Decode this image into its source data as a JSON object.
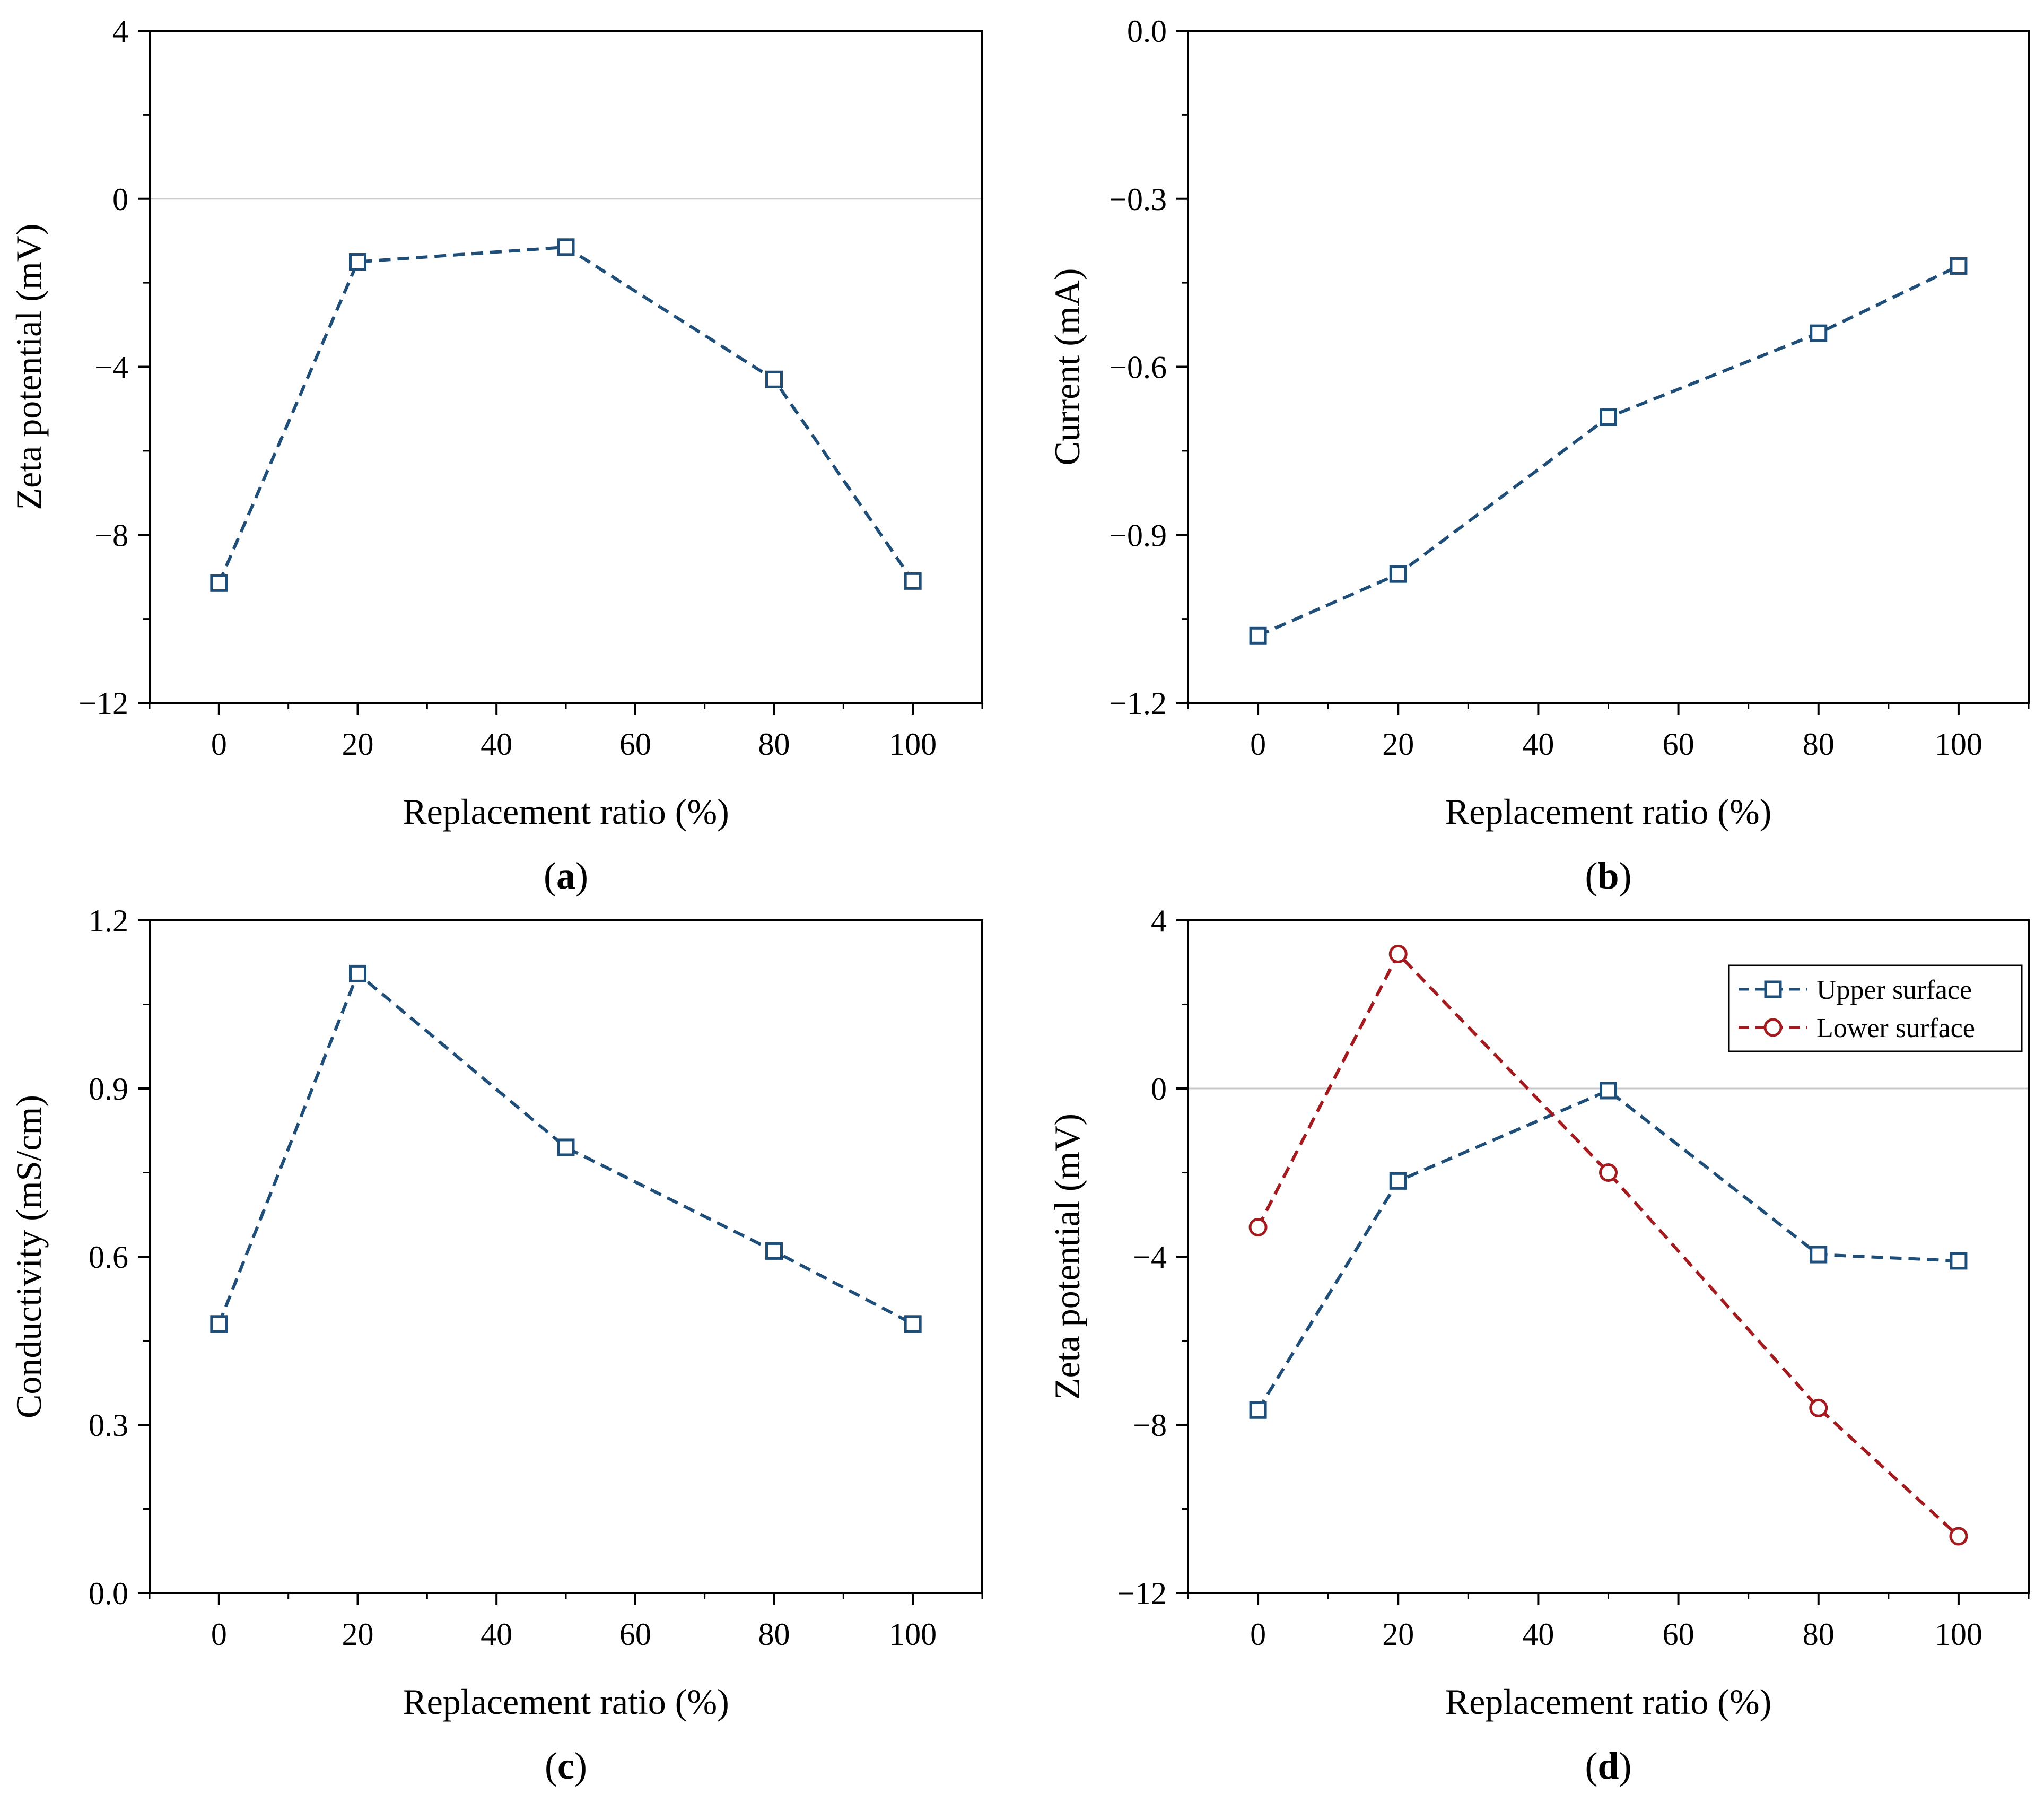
{
  "chart_data": [
    {
      "type": "line",
      "panel": "a",
      "panel_label": "a",
      "xlabel": "Replacement ratio (%)",
      "ylabel": "Zeta potential (mV)",
      "xlim": [
        -10,
        110
      ],
      "ylim": [
        -12,
        4
      ],
      "xticks": [
        0,
        20,
        40,
        60,
        80,
        100
      ],
      "xtick_labels": [
        "0",
        "20",
        "40",
        "60",
        "80",
        "100"
      ],
      "yticks": [
        -12,
        -8,
        -4,
        0,
        4
      ],
      "ytick_labels": [
        "−12",
        "−8",
        "−4",
        "0",
        "4"
      ],
      "zero_line": true,
      "x": [
        0,
        20,
        50,
        80,
        100
      ],
      "series": [
        {
          "name": "",
          "marker": "square",
          "color": "#1f4e79",
          "values": [
            -9.15,
            -1.5,
            -1.15,
            -4.3,
            -9.1
          ]
        }
      ]
    },
    {
      "type": "line",
      "panel": "b",
      "panel_label": "b",
      "xlabel": "Replacement ratio (%)",
      "ylabel": "Current (mA)",
      "xlim": [
        -10,
        110
      ],
      "ylim": [
        -1.2,
        0.0
      ],
      "xticks": [
        0,
        20,
        40,
        60,
        80,
        100
      ],
      "xtick_labels": [
        "0",
        "20",
        "40",
        "60",
        "80",
        "100"
      ],
      "yticks": [
        -1.2,
        -0.9,
        -0.6,
        -0.3,
        0.0
      ],
      "ytick_labels": [
        "−1.2",
        "−0.9",
        "−0.6",
        "−0.3",
        "0.0"
      ],
      "zero_line": false,
      "x": [
        0,
        20,
        50,
        80,
        100
      ],
      "series": [
        {
          "name": "",
          "marker": "square",
          "color": "#1f4e79",
          "values": [
            -1.08,
            -0.97,
            -0.69,
            -0.54,
            -0.42
          ]
        }
      ]
    },
    {
      "type": "line",
      "panel": "c",
      "panel_label": "c",
      "xlabel": "Replacement ratio (%)",
      "ylabel": "Conductivity (mS/cm)",
      "xlim": [
        -10,
        110
      ],
      "ylim": [
        0.0,
        1.2
      ],
      "xticks": [
        0,
        20,
        40,
        60,
        80,
        100
      ],
      "xtick_labels": [
        "0",
        "20",
        "40",
        "60",
        "80",
        "100"
      ],
      "yticks": [
        0.0,
        0.3,
        0.6,
        0.9,
        1.2
      ],
      "ytick_labels": [
        "0.0",
        "0.3",
        "0.6",
        "0.9",
        "1.2"
      ],
      "zero_line": false,
      "x": [
        0,
        20,
        50,
        80,
        100
      ],
      "series": [
        {
          "name": "",
          "marker": "square",
          "color": "#1f4e79",
          "values": [
            0.48,
            1.105,
            0.795,
            0.61,
            0.48
          ]
        }
      ]
    },
    {
      "type": "line",
      "panel": "d",
      "panel_label": "d",
      "xlabel": "Replacement ratio (%)",
      "ylabel": "Zeta potential (mV)",
      "xlim": [
        -10,
        110
      ],
      "ylim": [
        -12,
        4
      ],
      "xticks": [
        0,
        20,
        40,
        60,
        80,
        100
      ],
      "xtick_labels": [
        "0",
        "20",
        "40",
        "60",
        "80",
        "100"
      ],
      "yticks": [
        -12,
        -8,
        -4,
        0,
        4
      ],
      "ytick_labels": [
        "−12",
        "−8",
        "−4",
        "0",
        "4"
      ],
      "zero_line": true,
      "legend": "top-right",
      "x": [
        0,
        20,
        50,
        80,
        100
      ],
      "series": [
        {
          "name": "Upper surface",
          "marker": "square",
          "color": "#1f4e79",
          "values": [
            -7.65,
            -2.2,
            -0.05,
            -3.95,
            -4.1
          ]
        },
        {
          "name": "Lower surface",
          "marker": "circle",
          "color": "#a31b1f",
          "values": [
            -3.3,
            3.2,
            -2.0,
            -7.6,
            -10.65
          ]
        }
      ]
    }
  ]
}
